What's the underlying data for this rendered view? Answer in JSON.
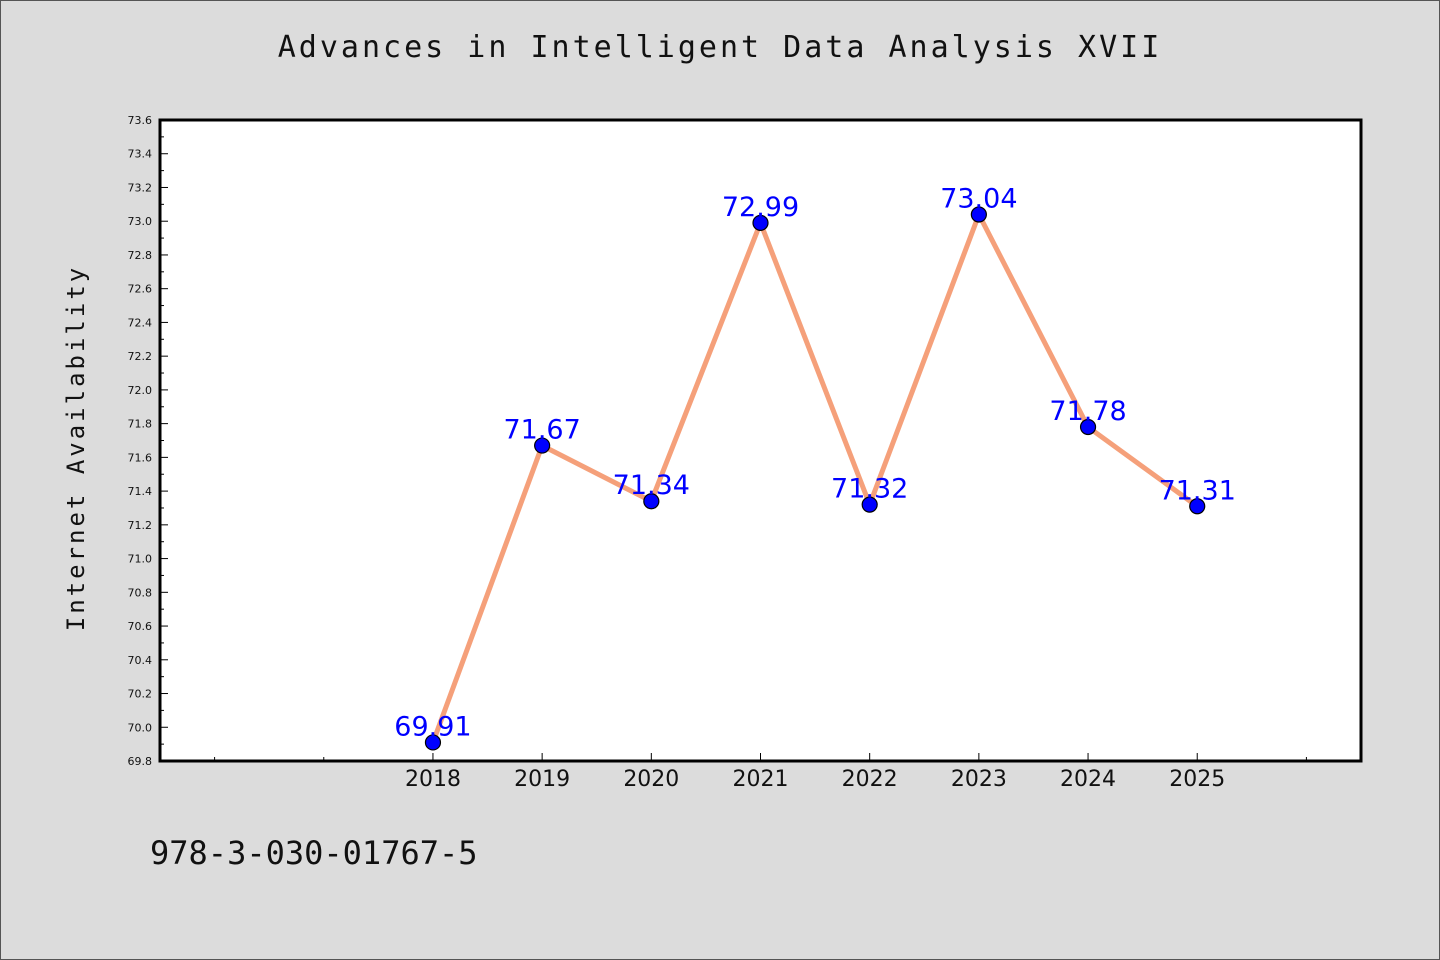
{
  "chart_data": {
    "type": "line",
    "title": "Advances in Intelligent Data Analysis XVII",
    "xlabel": "",
    "ylabel": "Internet Availability",
    "x": [
      "2018",
      "2019",
      "2020",
      "2021",
      "2022",
      "2023",
      "2024",
      "2025"
    ],
    "x_range": [
      2015.5,
      2026.5
    ],
    "series": [
      {
        "values": [
          69.91,
          71.67,
          71.34,
          72.99,
          71.32,
          73.04,
          71.78,
          71.31
        ],
        "labels": [
          "69.91",
          "71.67",
          "71.34",
          "72.99",
          "71.32",
          "73.04",
          "71.78",
          "71.31"
        ],
        "line_color": "#f5a07a",
        "marker_color": "#0000ff"
      }
    ],
    "ylim": [
      69.8,
      73.6
    ],
    "y_ticks": [
      "69.8",
      "70.0",
      "70.2",
      "70.4",
      "70.6",
      "70.8",
      "71.0",
      "71.2",
      "71.4",
      "71.6",
      "71.8",
      "72.0",
      "72.2",
      "72.4",
      "72.6",
      "72.8",
      "73.0",
      "73.2",
      "73.4",
      "73.6"
    ],
    "grid": false,
    "legend": "none",
    "label_color": "#0000ff"
  },
  "footer": {
    "isbn": "978-3-030-01767-5"
  }
}
